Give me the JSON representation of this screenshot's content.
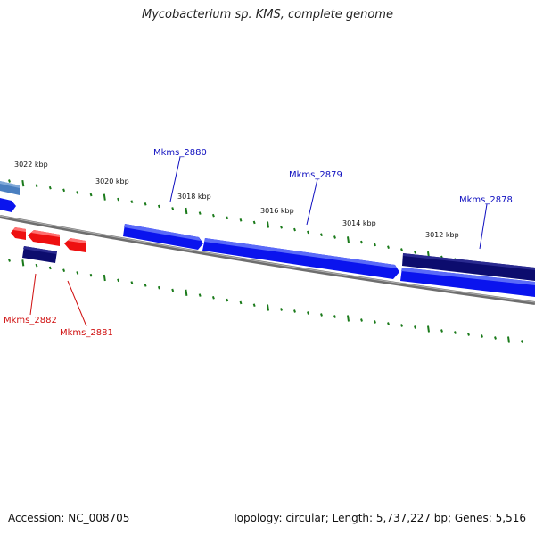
{
  "title": "Mycobacterium sp. KMS, complete genome",
  "accession": "Accession: NC_008705",
  "stats": "Topology: circular; Length: 5,737,227 bp; Genes: 5,516",
  "colors": {
    "background": "#ffffff",
    "backbone": "#808080",
    "tick": "#1a7a1a",
    "forward_gene": "#0a14ee",
    "forward_gene_dark": "#0c0c6e",
    "reverse_gene": "#ee1010",
    "light_blue_gene": "#4a7fc0",
    "forward_label": "#1010c0",
    "reverse_label": "#d01010"
  },
  "position_labels": [
    "3022 kbp",
    "3020 kbp",
    "3018 kbp",
    "3016 kbp",
    "3014 kbp",
    "3012 kbp"
  ],
  "gene_labels": {
    "forward": [
      "Mkms_2880",
      "Mkms_2879",
      "Mkms_2878"
    ],
    "reverse": [
      "Mkms_2882",
      "Mkms_2881"
    ]
  }
}
